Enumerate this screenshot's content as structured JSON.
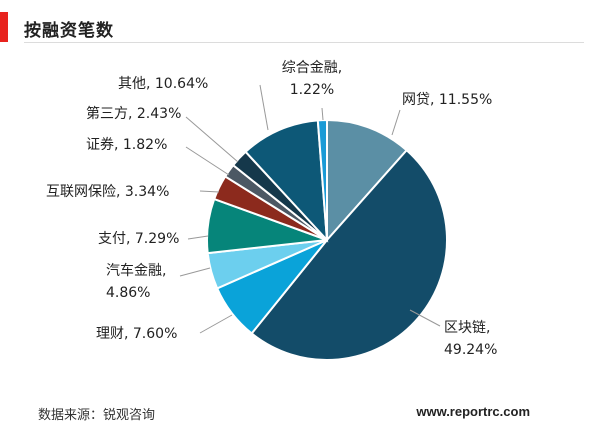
{
  "header": {
    "title": "按融资笔数"
  },
  "footer": {
    "source": "数据来源：锐观咨询",
    "website": "www.reportrc.com"
  },
  "chart_data": {
    "type": "pie",
    "title": "按融资笔数",
    "slices": [
      {
        "name": "网贷",
        "value": 11.55,
        "label_lines": [
          "网贷, 11.55%"
        ],
        "color": "#5b8fa5"
      },
      {
        "name": "区块链",
        "value": 49.24,
        "label_lines": [
          "区块链,",
          "49.24%"
        ],
        "color": "#134c69"
      },
      {
        "name": "理财",
        "value": 7.6,
        "label_lines": [
          "理财, 7.60%"
        ],
        "color": "#0aa3d9"
      },
      {
        "name": "汽车金融",
        "value": 4.86,
        "label_lines": [
          "汽车金融,",
          "4.86%"
        ],
        "color": "#6ccfee"
      },
      {
        "name": "支付",
        "value": 7.29,
        "label_lines": [
          "支付, 7.29%"
        ],
        "color": "#06857a"
      },
      {
        "name": "互联网保险",
        "value": 3.34,
        "label_lines": [
          "互联网保险, 3.34%"
        ],
        "color": "#8c2a1d"
      },
      {
        "name": "证券",
        "value": 1.82,
        "label_lines": [
          "证券, 1.82%"
        ],
        "color": "#4c5864"
      },
      {
        "name": "第三方",
        "value": 2.43,
        "label_lines": [
          "第三方, 2.43%"
        ],
        "color": "#15384b"
      },
      {
        "name": "其他",
        "value": 10.64,
        "label_lines": [
          "其他, 10.64%"
        ],
        "color": "#0d5877"
      },
      {
        "name": "综合金融",
        "value": 1.22,
        "label_lines": [
          "综合金融,",
          "1.22%"
        ],
        "color": "#1a9bd6"
      }
    ]
  }
}
